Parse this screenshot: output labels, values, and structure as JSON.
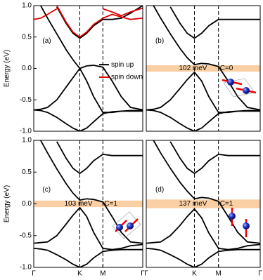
{
  "chart_data": [
    {
      "type": "line",
      "title": "(a)",
      "ylabel": "Energy (eV)",
      "x": [
        0,
        0.15,
        0.3,
        0.5,
        0.7,
        0.85,
        1.0,
        1.15,
        1.3,
        1.5,
        1.7,
        1.9,
        2.1,
        2.366
      ],
      "xlim": [
        0,
        2.366
      ],
      "ylim": [
        -1,
        1
      ],
      "vlines": [
        1,
        1.5
      ],
      "yticks": [
        {
          "value": -1,
          "label": "-1.0"
        },
        {
          "value": -0.5,
          "label": "-0.5"
        },
        {
          "value": 0,
          "label": "0.0"
        },
        {
          "value": 0.5,
          "label": "0.5"
        },
        {
          "value": 1,
          "label": "1.0"
        }
      ],
      "legend": [
        {
          "name": "spin up",
          "color": "#000000"
        },
        {
          "name": "spin down",
          "color": "#e00000"
        }
      ],
      "series": [
        {
          "color": "#000000",
          "values": [
            null,
            1.0,
            0.8,
            0.55,
            0.3,
            0.14,
            0.0,
            0.04,
            0.05,
            0.02,
            -0.2,
            -0.45,
            -0.62,
            -0.66
          ]
        },
        {
          "color": "#000000",
          "values": [
            -0.66,
            -0.65,
            -0.62,
            -0.5,
            -0.3,
            -0.15,
            0.0,
            -0.2,
            -0.45,
            -0.7,
            -0.7,
            -0.68,
            -0.67,
            -0.67
          ]
        },
        {
          "color": "#000000",
          "values": [
            -0.66,
            -0.67,
            -0.7,
            -0.78,
            -0.88,
            -0.95,
            -1.0,
            -0.95,
            -0.85,
            -0.72,
            -0.69,
            -0.68,
            -0.68,
            -0.68
          ]
        },
        {
          "color": "#000000",
          "values": [
            null,
            null,
            null,
            0.98,
            0.72,
            0.56,
            0.48,
            0.56,
            0.68,
            0.78,
            0.78,
            0.8,
            0.88,
            1.0
          ]
        },
        {
          "color": "#e00000",
          "values": [
            null,
            null,
            null,
            1.0,
            0.74,
            0.58,
            0.5,
            0.58,
            0.7,
            0.8,
            0.86,
            0.82,
            0.78,
            0.8
          ]
        },
        {
          "color": "#e00000",
          "values": [
            0.78,
            0.8,
            0.86,
            0.95,
            null,
            null,
            null,
            null,
            null,
            0.95,
            0.9,
            0.84,
            0.9,
            0.96
          ]
        }
      ]
    },
    {
      "type": "line",
      "title": "(b)",
      "x": [
        0,
        0.15,
        0.3,
        0.5,
        0.7,
        0.85,
        1.0,
        1.15,
        1.3,
        1.5,
        1.7,
        1.9,
        2.1,
        2.366
      ],
      "xlim": [
        0,
        2.366
      ],
      "ylim": [
        -1,
        1
      ],
      "vlines": [
        1,
        1.5
      ],
      "gap": [
        -0.051,
        0.051
      ],
      "gap_color": "#f9cfa3",
      "gap_label": "102 meV",
      "chern": "C=0",
      "series": [
        {
          "color": "#000000",
          "values": [
            null,
            1.0,
            0.8,
            0.55,
            0.32,
            0.17,
            0.06,
            0.08,
            0.07,
            0.03,
            -0.2,
            -0.45,
            -0.62,
            -0.66
          ]
        },
        {
          "color": "#000000",
          "values": [
            -0.66,
            -0.65,
            -0.62,
            -0.5,
            -0.32,
            -0.18,
            -0.06,
            -0.2,
            -0.45,
            -0.7,
            -0.7,
            -0.68,
            -0.67,
            -0.67
          ]
        },
        {
          "color": "#000000",
          "values": [
            -0.66,
            -0.67,
            -0.7,
            -0.78,
            -0.88,
            -0.95,
            -1.0,
            -0.95,
            -0.85,
            -0.72,
            -0.69,
            -0.68,
            -0.68,
            -0.68
          ]
        },
        {
          "color": "#000000",
          "values": [
            null,
            null,
            null,
            0.98,
            0.72,
            0.56,
            0.48,
            0.56,
            0.68,
            0.78,
            0.78,
            0.78,
            0.78,
            0.78
          ]
        }
      ]
    },
    {
      "type": "line",
      "title": "(c)",
      "ylabel": "Energy (eV)",
      "x": [
        0,
        0.15,
        0.3,
        0.5,
        0.7,
        0.85,
        1.0,
        1.15,
        1.3,
        1.5,
        1.7,
        1.9,
        2.1,
        2.366
      ],
      "xlim": [
        0,
        2.366
      ],
      "ylim": [
        -1,
        1
      ],
      "vlines": [
        1,
        1.5
      ],
      "xticks": [
        {
          "value": 0,
          "label": "Γ"
        },
        {
          "value": 1,
          "label": "K"
        },
        {
          "value": 1.5,
          "label": "M"
        },
        {
          "value": 2.366,
          "label": "Γ"
        }
      ],
      "yticks": [
        {
          "value": -1,
          "label": "-1.0"
        },
        {
          "value": -0.5,
          "label": "-0.5"
        },
        {
          "value": 0,
          "label": "0.0"
        },
        {
          "value": 0.5,
          "label": "0.5"
        },
        {
          "value": 1,
          "label": "1.0"
        }
      ],
      "gap": [
        -0.0515,
        0.0515
      ],
      "gap_color": "#f9cfa3",
      "gap_label": "103 meV",
      "chern": "C=1",
      "series": [
        {
          "color": "#000000",
          "values": [
            null,
            1.0,
            0.8,
            0.55,
            0.32,
            0.17,
            0.06,
            0.08,
            0.07,
            0.03,
            -0.2,
            -0.45,
            -0.6,
            -0.62
          ]
        },
        {
          "color": "#000000",
          "values": [
            -0.62,
            -0.61,
            -0.6,
            -0.5,
            -0.32,
            -0.18,
            -0.06,
            -0.2,
            -0.45,
            -0.7,
            -0.72,
            -0.7,
            -0.66,
            -0.64
          ]
        },
        {
          "color": "#000000",
          "values": [
            -0.7,
            -0.71,
            -0.73,
            -0.8,
            -0.88,
            -0.95,
            -1.0,
            -0.95,
            -0.85,
            -0.75,
            -0.73,
            -0.72,
            -0.72,
            -0.72
          ]
        },
        {
          "color": "#000000",
          "values": [
            null,
            null,
            null,
            0.98,
            0.72,
            0.56,
            0.48,
            0.56,
            0.68,
            0.78,
            0.76,
            0.76,
            0.76,
            0.76
          ]
        }
      ]
    },
    {
      "type": "line",
      "title": "(d)",
      "x": [
        0,
        0.15,
        0.3,
        0.5,
        0.7,
        0.85,
        1.0,
        1.15,
        1.3,
        1.5,
        1.7,
        1.9,
        2.1,
        2.366
      ],
      "xlim": [
        0,
        2.366
      ],
      "ylim": [
        -1,
        1
      ],
      "vlines": [
        1,
        1.5
      ],
      "xticks": [
        {
          "value": 0,
          "label": "Γ"
        },
        {
          "value": 1,
          "label": "K"
        },
        {
          "value": 1.5,
          "label": "M"
        },
        {
          "value": 2.366,
          "label": "Γ"
        }
      ],
      "gap": [
        -0.0685,
        0.0685
      ],
      "gap_color": "#f9cfa3",
      "gap_label": "137 meV",
      "chern": "C=1",
      "series": [
        {
          "color": "#000000",
          "values": [
            null,
            1.0,
            0.8,
            0.56,
            0.34,
            0.2,
            0.08,
            0.1,
            0.09,
            0.04,
            -0.2,
            -0.45,
            -0.6,
            -0.62
          ]
        },
        {
          "color": "#000000",
          "values": [
            -0.62,
            -0.61,
            -0.6,
            -0.5,
            -0.34,
            -0.2,
            -0.08,
            -0.22,
            -0.46,
            -0.7,
            -0.72,
            -0.7,
            -0.66,
            -0.64
          ]
        },
        {
          "color": "#000000",
          "values": [
            -0.7,
            -0.71,
            -0.73,
            -0.8,
            -0.88,
            -0.95,
            -1.0,
            -0.95,
            -0.85,
            -0.75,
            -0.73,
            -0.72,
            -0.72,
            -0.72
          ]
        },
        {
          "color": "#000000",
          "values": [
            null,
            null,
            null,
            0.98,
            0.72,
            0.56,
            0.48,
            0.56,
            0.68,
            0.78,
            0.76,
            0.76,
            0.76,
            0.76
          ]
        }
      ]
    }
  ]
}
